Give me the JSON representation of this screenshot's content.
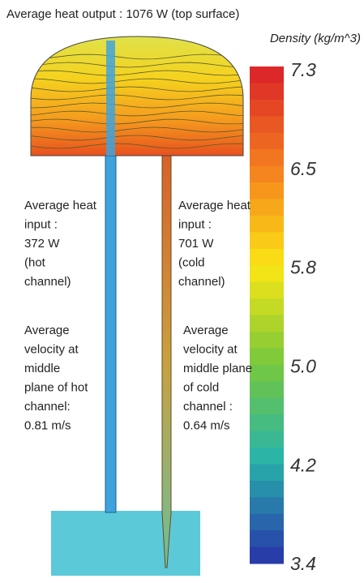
{
  "header": {
    "title": "Average heat output : 1076 W (top surface)"
  },
  "colorbar": {
    "title": "Density (kg/m^3)",
    "ticks": [
      "7.3",
      "6.5",
      "5.8",
      "5.0",
      "4.2",
      "3.4"
    ]
  },
  "annotations": {
    "hot_input": [
      "Average heat",
      "input :",
      "372 W",
      "(hot",
      "channel)"
    ],
    "cold_input": [
      "Average heat",
      "input :",
      "701 W",
      "(cold",
      "channel)"
    ],
    "hot_velocity": [
      "Average",
      "velocity at",
      "middle",
      "plane of hot",
      "channel:",
      "0.81 m/s"
    ],
    "cold_velocity": [
      "Average",
      "velocity at",
      "middle plane",
      "of cold",
      "channel :",
      "0.64 m/s"
    ]
  }
}
